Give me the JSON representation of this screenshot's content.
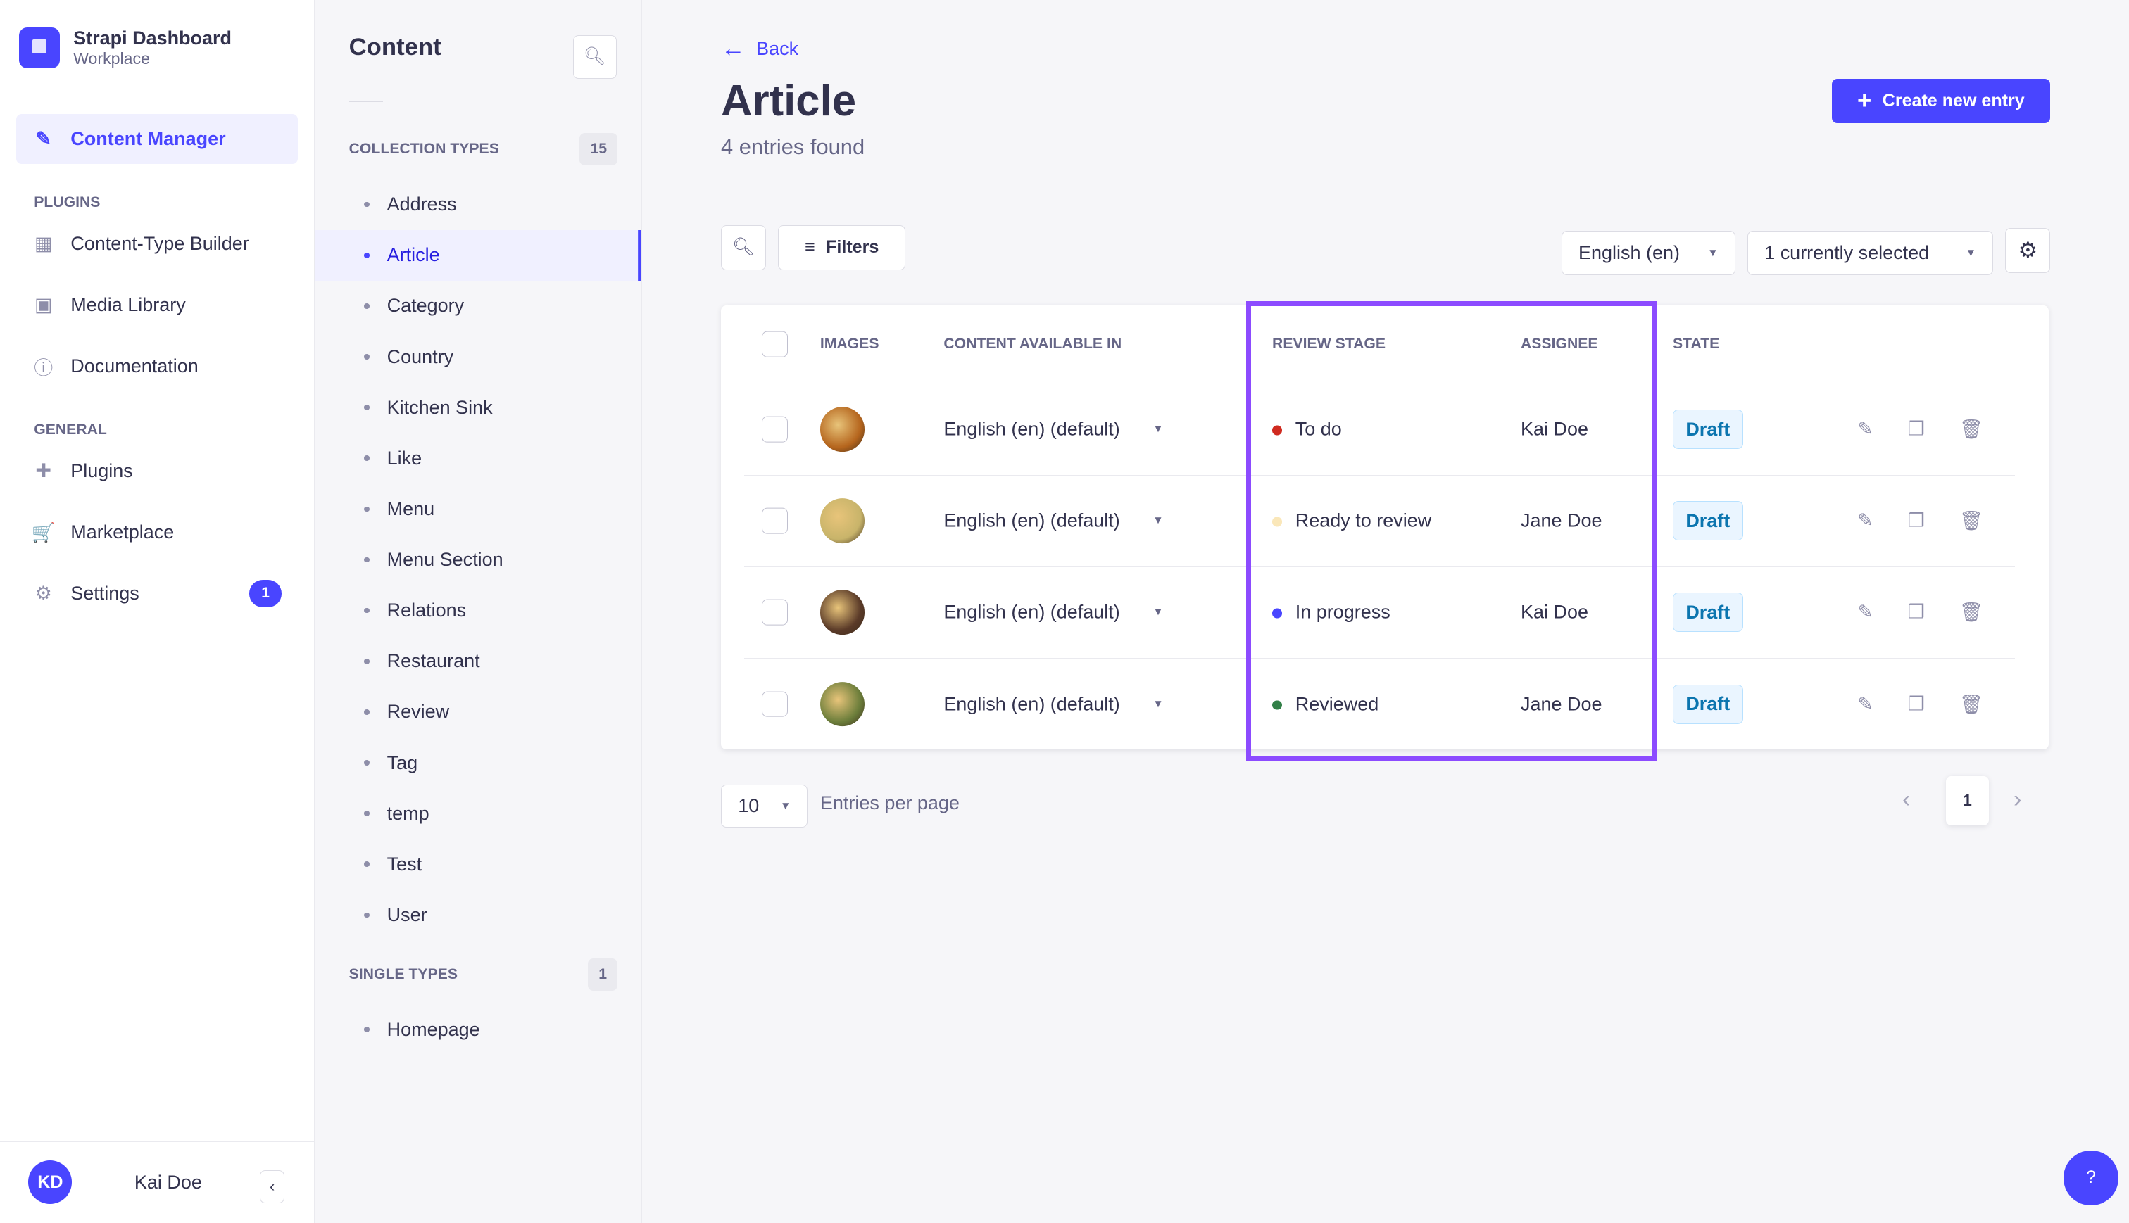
{
  "app": {
    "title": "Strapi Dashboard",
    "workspace": "Workplace"
  },
  "nav": {
    "active": "Content Manager",
    "plugins_label": "PLUGINS",
    "plugins": [
      "Content-Type Builder",
      "Media Library",
      "Documentation"
    ],
    "general_label": "GENERAL",
    "general": [
      "Plugins",
      "Marketplace",
      "Settings"
    ],
    "settings_badge": "1"
  },
  "user": {
    "initials": "KD",
    "name": "Kai Doe"
  },
  "content": {
    "title": "Content",
    "collection_label": "COLLECTION TYPES",
    "collection_count": "15",
    "collection_types": [
      "Address",
      "Article",
      "Category",
      "Country",
      "Kitchen Sink",
      "Like",
      "Menu",
      "Menu Section",
      "Relations",
      "Restaurant",
      "Review",
      "Tag",
      "temp",
      "Test",
      "User"
    ],
    "active": "Article",
    "single_label": "SINGLE TYPES",
    "single_count": "1",
    "single_types": [
      "Homepage"
    ]
  },
  "main": {
    "back": "Back",
    "title": "Article",
    "subtitle": "4 entries found",
    "create": "Create new entry",
    "filters": "Filters",
    "locale": "English (en)",
    "columns_selected": "1 currently selected",
    "headers": [
      "IMAGES",
      "CONTENT AVAILABLE IN",
      "REVIEW STAGE",
      "ASSIGNEE",
      "STATE"
    ],
    "rows": [
      {
        "locale": "English (en) (default)",
        "stage": "To do",
        "stage_color": "#d02b20",
        "assignee": "Kai Doe",
        "state": "Draft",
        "img": "#b5651d"
      },
      {
        "locale": "English (en) (default)",
        "stage": "Ready to review",
        "stage_color": "#fae7b9",
        "assignee": "Jane Doe",
        "state": "Draft",
        "img": "#c8b46a"
      },
      {
        "locale": "English (en) (default)",
        "stage": "In progress",
        "stage_color": "#4945ff",
        "assignee": "Kai Doe",
        "state": "Draft",
        "img": "#5a3a28"
      },
      {
        "locale": "English (en) (default)",
        "stage": "Reviewed",
        "stage_color": "#328048",
        "assignee": "Jane Doe",
        "state": "Draft",
        "img": "#6b7d3a"
      }
    ],
    "per_page": "10",
    "per_page_label": "Entries per page",
    "page": "1"
  },
  "help": "?"
}
